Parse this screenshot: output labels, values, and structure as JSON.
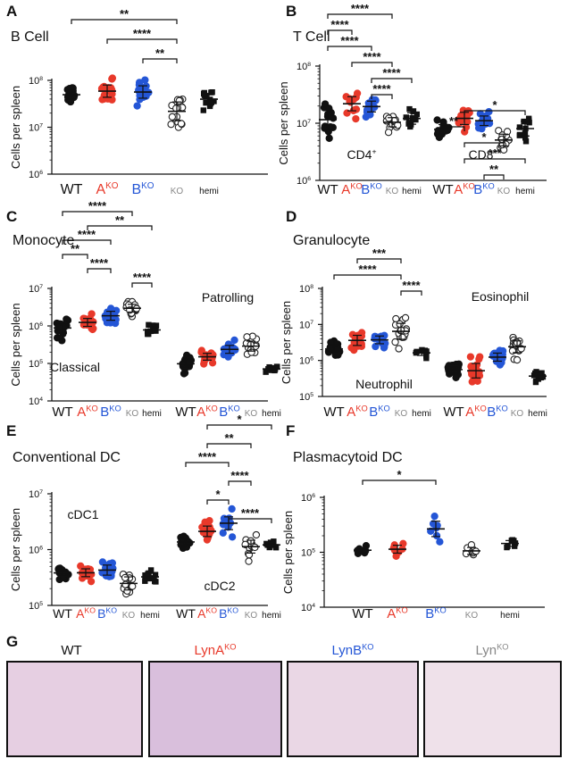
{
  "colors": {
    "wt": "#111111",
    "a": "#e8392a",
    "b": "#2456d6",
    "ko": "#222222",
    "ko_text": "#888888",
    "hemi": "#111111"
  },
  "groups": [
    {
      "key": "wt",
      "label": "WT",
      "sup": ""
    },
    {
      "key": "a",
      "label": "A",
      "sup": "KO"
    },
    {
      "key": "b",
      "label": "B",
      "sup": "KO"
    },
    {
      "key": "ko",
      "label": "KO",
      "sup": ""
    },
    {
      "key": "hemi",
      "label": "hemi",
      "sup": ""
    }
  ],
  "chart_data": [
    {
      "panel": "A",
      "type": "scatter",
      "title": "B Cell",
      "ylabel": "Cells per spleen",
      "yscale": "log",
      "ylim": [
        1000000,
        100000000
      ],
      "yticks": [
        "10^6",
        "10^7",
        "10^8"
      ],
      "subsets": [
        {
          "label": "",
          "groups": [
            {
              "key": "wt",
              "n": 20,
              "median": 45000000,
              "spread": 0.16
            },
            {
              "key": "a",
              "n": 20,
              "median": 60000000,
              "spread": 0.14
            },
            {
              "key": "b",
              "n": 18,
              "median": 55000000,
              "spread": 0.15
            },
            {
              "key": "ko",
              "n": 18,
              "median": 20000000,
              "spread": 0.2
            },
            {
              "key": "hemi",
              "n": 13,
              "median": 40000000,
              "spread": 0.16
            }
          ]
        }
      ],
      "brackets": [
        {
          "from": 0,
          "to": 3,
          "text": "**"
        },
        {
          "from": 1,
          "to": 3,
          "text": "****"
        },
        {
          "from": 2,
          "to": 3,
          "text": "**"
        }
      ]
    },
    {
      "panel": "B",
      "type": "scatter",
      "title": "T Cell",
      "ylabel": "Cells per spleen",
      "yscale": "log",
      "ylim": [
        1000000,
        100000000
      ],
      "yticks": [
        "10^6",
        "10^7",
        "10^8"
      ],
      "subsets": [
        {
          "label": "CD4",
          "label_sup": "+",
          "groups": [
            {
              "key": "wt",
              "n": 14,
              "median": 11000000,
              "spread": 0.15
            },
            {
              "key": "a",
              "n": 14,
              "median": 22000000,
              "spread": 0.13
            },
            {
              "key": "b",
              "n": 14,
              "median": 20000000,
              "spread": 0.12
            },
            {
              "key": "ko",
              "n": 13,
              "median": 9500000,
              "spread": 0.12
            },
            {
              "key": "hemi",
              "n": 12,
              "median": 12000000,
              "spread": 0.11
            }
          ]
        },
        {
          "label": "CD8",
          "label_sup": "+",
          "groups": [
            {
              "key": "wt",
              "n": 14,
              "median": 7500000,
              "spread": 0.14
            },
            {
              "key": "a",
              "n": 14,
              "median": 12000000,
              "spread": 0.12
            },
            {
              "key": "b",
              "n": 14,
              "median": 11500000,
              "spread": 0.11
            },
            {
              "key": "ko",
              "n": 13,
              "median": 5500000,
              "spread": 0.12
            },
            {
              "key": "hemi",
              "n": 12,
              "median": 8000000,
              "spread": 0.11
            }
          ]
        }
      ],
      "brackets": [
        {
          "from": 0,
          "to": 3,
          "text": "****"
        },
        {
          "from": 0,
          "to": 1,
          "text": "****"
        },
        {
          "from": 0,
          "to": 2,
          "text": "****"
        },
        {
          "from": 1,
          "to": 3,
          "text": "****"
        },
        {
          "from": 2,
          "to": 4,
          "text": "****"
        },
        {
          "from": 2,
          "to": 3,
          "text": "****"
        },
        {
          "from": 6,
          "to": 9,
          "text": "*"
        },
        {
          "from": 5,
          "to": 6,
          "text": "**"
        },
        {
          "from": 6,
          "to": 8,
          "text": "*"
        },
        {
          "from": 6,
          "to": 9,
          "text": "***"
        },
        {
          "from": 7,
          "to": 8,
          "text": "**"
        }
      ]
    },
    {
      "panel": "C",
      "type": "scatter",
      "title": "Monocyte",
      "ylabel": "Cells per spleen",
      "yscale": "log",
      "ylim": [
        10000,
        10000000
      ],
      "yticks": [
        "10^4",
        "10^5",
        "10^6",
        "10^7"
      ],
      "subsets": [
        {
          "label": "Classical",
          "groups": [
            {
              "key": "wt",
              "n": 20,
              "median": 900000,
              "spread": 0.18
            },
            {
              "key": "a",
              "n": 18,
              "median": 1300000,
              "spread": 0.15
            },
            {
              "key": "b",
              "n": 16,
              "median": 1800000,
              "spread": 0.12
            },
            {
              "key": "ko",
              "n": 18,
              "median": 3000000,
              "spread": 0.18
            },
            {
              "key": "hemi",
              "n": 11,
              "median": 700000,
              "spread": 0.12
            }
          ]
        },
        {
          "label": "Patrolling",
          "groups": [
            {
              "key": "wt",
              "n": 20,
              "median": 100000,
              "spread": 0.18
            },
            {
              "key": "a",
              "n": 18,
              "median": 150000,
              "spread": 0.12
            },
            {
              "key": "b",
              "n": 16,
              "median": 250000,
              "spread": 0.12
            },
            {
              "key": "ko",
              "n": 18,
              "median": 320000,
              "spread": 0.2
            },
            {
              "key": "hemi",
              "n": 11,
              "median": 70000,
              "spread": 0.09
            }
          ]
        }
      ],
      "brackets": [
        {
          "from": 0,
          "to": 3,
          "text": "****"
        },
        {
          "from": 1,
          "to": 4,
          "text": "**"
        },
        {
          "from": 0,
          "to": 2,
          "text": "****"
        },
        {
          "from": 0,
          "to": 1,
          "text": "**"
        },
        {
          "from": 1,
          "to": 2,
          "text": "****"
        },
        {
          "from": 3,
          "to": 4,
          "text": "****"
        }
      ]
    },
    {
      "panel": "D",
      "type": "scatter",
      "title": "Granulocyte",
      "ylabel": "Cells per spleen",
      "yscale": "log",
      "ylim": [
        100000,
        100000000
      ],
      "yticks": [
        "10^5",
        "10^6",
        "10^7",
        "10^8"
      ],
      "subsets": [
        {
          "label": "Neutrophil",
          "groups": [
            {
              "key": "wt",
              "n": 18,
              "median": 2000000,
              "spread": 0.18
            },
            {
              "key": "a",
              "n": 20,
              "median": 3200000,
              "spread": 0.2
            },
            {
              "key": "b",
              "n": 18,
              "median": 3500000,
              "spread": 0.2
            },
            {
              "key": "ko",
              "n": 18,
              "median": 6500000,
              "spread": 0.25
            },
            {
              "key": "hemi",
              "n": 10,
              "median": 1600000,
              "spread": 0.1
            }
          ]
        },
        {
          "label": "Eosinophil",
          "groups": [
            {
              "key": "wt",
              "n": 18,
              "median": 550000,
              "spread": 0.18
            },
            {
              "key": "a",
              "n": 20,
              "median": 600000,
              "spread": 0.22
            },
            {
              "key": "b",
              "n": 18,
              "median": 1200000,
              "spread": 0.16
            },
            {
              "key": "ko",
              "n": 18,
              "median": 2500000,
              "spread": 0.22
            },
            {
              "key": "hemi",
              "n": 10,
              "median": 400000,
              "spread": 0.14
            }
          ]
        }
      ],
      "brackets": [
        {
          "from": 1,
          "to": 3,
          "text": "***"
        },
        {
          "from": 0,
          "to": 3,
          "text": "****"
        },
        {
          "from": 3,
          "to": 4,
          "text": "****"
        }
      ]
    },
    {
      "panel": "E",
      "type": "scatter",
      "title": "Conventional DC",
      "ylabel": "Cells per spleen",
      "yscale": "log",
      "ylim": [
        100000,
        10000000
      ],
      "yticks": [
        "10^5",
        "10^6",
        "10^7"
      ],
      "subsets": [
        {
          "label": "cDC1",
          "groups": [
            {
              "key": "wt",
              "n": 16,
              "median": 400000,
              "spread": 0.09
            },
            {
              "key": "a",
              "n": 15,
              "median": 350000,
              "spread": 0.1
            },
            {
              "key": "b",
              "n": 14,
              "median": 400000,
              "spread": 0.12
            },
            {
              "key": "ko",
              "n": 14,
              "median": 230000,
              "spread": 0.15
            },
            {
              "key": "hemi",
              "n": 11,
              "median": 330000,
              "spread": 0.1
            }
          ]
        },
        {
          "label": "cDC2",
          "groups": [
            {
              "key": "wt",
              "n": 16,
              "median": 1500000,
              "spread": 0.09
            },
            {
              "key": "a",
              "n": 15,
              "median": 2000000,
              "spread": 0.12
            },
            {
              "key": "b",
              "n": 14,
              "median": 2700000,
              "spread": 0.14
            },
            {
              "key": "ko",
              "n": 14,
              "median": 1100000,
              "spread": 0.14
            },
            {
              "key": "hemi",
              "n": 11,
              "median": 1200000,
              "spread": 0.08
            }
          ]
        }
      ],
      "brackets": [
        {
          "from": 6,
          "to": 9,
          "text": "*"
        },
        {
          "from": 6,
          "to": 8,
          "text": "**"
        },
        {
          "from": 5,
          "to": 7,
          "text": "****"
        },
        {
          "from": 7,
          "to": 8,
          "text": "****"
        },
        {
          "from": 6,
          "to": 7,
          "text": "*"
        },
        {
          "from": 7,
          "to": 9,
          "text": "****"
        }
      ]
    },
    {
      "panel": "F",
      "type": "scatter",
      "title": "Plasmacytoid DC",
      "ylabel": "Cells per spleen",
      "yscale": "log",
      "ylim": [
        10000,
        1000000
      ],
      "yticks": [
        "10^4",
        "10^5",
        "10^6"
      ],
      "subsets": [
        {
          "label": "",
          "groups": [
            {
              "key": "wt",
              "n": 7,
              "median": 110000,
              "spread": 0.12
            },
            {
              "key": "a",
              "n": 7,
              "median": 120000,
              "spread": 0.12
            },
            {
              "key": "b",
              "n": 7,
              "median": 250000,
              "spread": 0.14
            },
            {
              "key": "ko",
              "n": 6,
              "median": 125000,
              "spread": 0.12
            },
            {
              "key": "hemi",
              "n": 7,
              "median": 135000,
              "spread": 0.08
            }
          ]
        }
      ],
      "brackets": [
        {
          "from": 0,
          "to": 2,
          "text": "*"
        }
      ]
    }
  ],
  "histology": {
    "panel": "G",
    "labels": [
      {
        "text": "WT",
        "sup": "",
        "key": "wt"
      },
      {
        "text": "LynA",
        "sup": "KO",
        "key": "a"
      },
      {
        "text": "LynB",
        "sup": "KO",
        "key": "b"
      },
      {
        "text": "Lyn",
        "sup": "KO",
        "key": "ko"
      }
    ]
  }
}
